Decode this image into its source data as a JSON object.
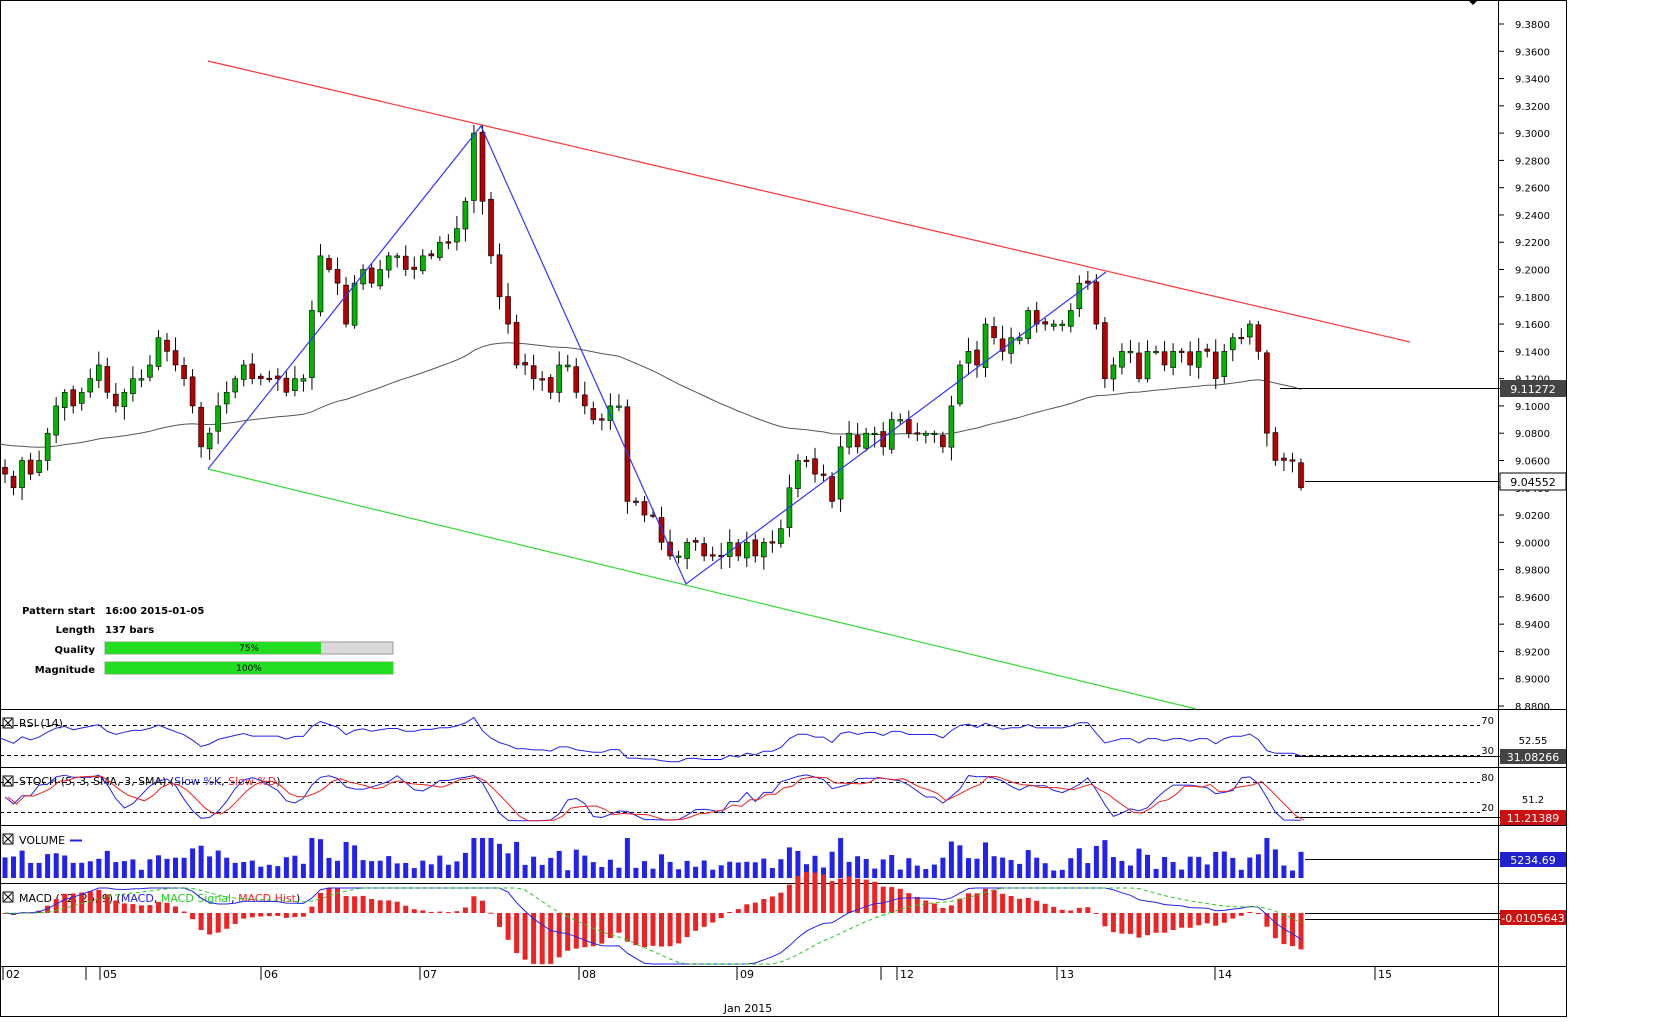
{
  "chart_data": {
    "type": "candlestick",
    "title": "",
    "ylim": [
      8.88,
      9.39
    ],
    "yticks": [
      "9.3800",
      "9.3600",
      "9.3400",
      "9.3200",
      "9.3000",
      "9.2800",
      "9.2600",
      "9.2400",
      "9.2200",
      "9.2000",
      "9.1800",
      "9.1600",
      "9.1400",
      "9.1200",
      "9.1000",
      "9.0800",
      "9.0600",
      "9.0400",
      "9.0200",
      "9.0000",
      "8.9800",
      "8.9600",
      "8.9400",
      "8.9200",
      "8.9000",
      "8.8800"
    ],
    "ytick_values": [
      9.38,
      9.36,
      9.34,
      9.32,
      9.3,
      9.28,
      9.26,
      9.24,
      9.22,
      9.2,
      9.18,
      9.16,
      9.14,
      9.12,
      9.1,
      9.08,
      9.06,
      9.04,
      9.02,
      9.0,
      8.98,
      8.96,
      8.94,
      8.92,
      8.9,
      8.88
    ],
    "price_labels": {
      "ma_value": "9.11272",
      "last_value": "9.04552",
      "ma": 9.11272,
      "last": 9.04552
    },
    "xlabels": [
      "02",
      "05",
      "06",
      "07",
      "08",
      "09",
      "12",
      "13",
      "14",
      "15"
    ],
    "xsub": "Jan 2015",
    "closes": [
      9.05,
      9.04,
      9.06,
      9.05,
      9.06,
      9.08,
      9.1,
      9.11,
      9.1,
      9.11,
      9.12,
      9.13,
      9.11,
      9.1,
      9.11,
      9.12,
      9.12,
      9.13,
      9.15,
      9.14,
      9.13,
      9.12,
      9.1,
      9.07,
      9.08,
      9.1,
      9.11,
      9.12,
      9.13,
      9.12,
      9.12,
      9.12,
      9.12,
      9.11,
      9.12,
      9.12,
      9.17,
      9.21,
      9.2,
      9.19,
      9.16,
      9.19,
      9.2,
      9.19,
      9.2,
      9.21,
      9.21,
      9.2,
      9.2,
      9.21,
      9.21,
      9.22,
      9.22,
      9.23,
      9.25,
      9.3,
      9.25,
      9.21,
      9.18,
      9.16,
      9.13,
      9.13,
      9.12,
      9.12,
      9.11,
      9.13,
      9.13,
      9.11,
      9.1,
      9.09,
      9.09,
      9.1,
      9.1,
      9.03,
      9.03,
      9.02,
      9.02,
      9.0,
      8.99,
      8.99,
      9.0,
      9.0,
      8.99,
      8.99,
      8.99,
      9.0,
      8.99,
      9.0,
      8.99,
      9.0,
      9.0,
      9.01,
      9.04,
      9.06,
      9.06,
      9.05,
      9.05,
      9.03,
      9.07,
      9.08,
      9.07,
      9.08,
      9.08,
      9.07,
      9.09,
      9.09,
      9.08,
      9.08,
      9.08,
      9.08,
      9.07,
      9.1,
      9.13,
      9.14,
      9.13,
      9.16,
      9.15,
      9.14,
      9.15,
      9.15,
      9.17,
      9.16,
      9.16,
      9.16,
      9.16,
      9.17,
      9.19,
      9.19,
      9.16,
      9.12,
      9.13,
      9.14,
      9.14,
      9.12,
      9.14,
      9.14,
      9.13,
      9.14,
      9.14,
      9.13,
      9.14,
      9.14,
      9.12,
      9.14,
      9.15,
      9.15,
      9.16,
      9.14,
      9.08,
      9.06,
      9.06,
      9.06,
      9.04
    ]
  },
  "info": {
    "pattern_start_label": "Pattern start",
    "pattern_start_value": "16:00 2015-01-05",
    "length_label": "Length",
    "length_value": "137 bars",
    "quality_label": "Quality",
    "quality_value": "75%",
    "quality_pct": 75,
    "magnitude_label": "Magnitude",
    "magnitude_value": "100%",
    "magnitude_pct": 100
  },
  "panels": {
    "rsi": {
      "title": "RSI (14)",
      "level_hi": "70",
      "level_lo": "30",
      "mid": "52.55",
      "value": "31.08266",
      "last": 31.08266
    },
    "stoch": {
      "title_prefix": "STOCH (5, 3, SMA, 3, SMA)",
      "k_label": "Slow %K",
      "d_label": "Slow %D",
      "level_hi": "80",
      "level_lo": "20",
      "mid": "51.2",
      "value": "11.21389",
      "last": 11.21389
    },
    "volume": {
      "title": "VOLUME",
      "value": "5234.69",
      "last": 5234.69
    },
    "macd": {
      "title_prefix": "MACD (12, 26, 9)",
      "macd_label": "MACD",
      "signal_label": "MACD Signal",
      "hist_label": "MACD Hist",
      "value": "-0.0105643",
      "last": -0.0105643
    }
  },
  "colors": {
    "up": "#00b400",
    "down": "#b40000",
    "resistance": "#ff3333",
    "support": "#33dd33",
    "zigzag": "#3333ff",
    "ma": "#555555",
    "blue": "#2222ee",
    "red": "#ee2222",
    "green_sig": "#22cc22"
  }
}
